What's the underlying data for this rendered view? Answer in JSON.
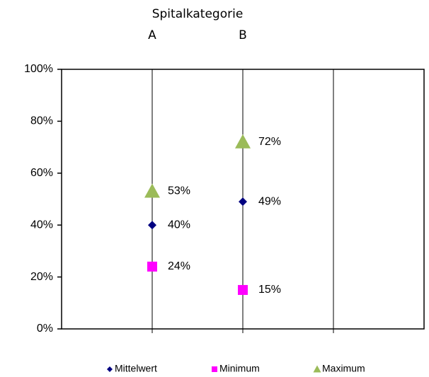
{
  "chart_data": {
    "type": "scatter",
    "title": "Spitalkategorie",
    "categories": [
      "A",
      "B",
      null
    ],
    "series": [
      {
        "name": "Mittelwert",
        "color": "#000080",
        "marker": "diamond",
        "values": [
          40,
          49,
          null
        ],
        "value_labels": [
          "40%",
          "49%",
          null
        ]
      },
      {
        "name": "Minimum",
        "color": "#ff00ff",
        "marker": "square",
        "values": [
          24,
          15,
          null
        ],
        "value_labels": [
          "24%",
          "15%",
          null
        ]
      },
      {
        "name": "Maximum",
        "color": "#9bbb59",
        "marker": "triangle",
        "values": [
          53,
          72,
          null
        ],
        "value_labels": [
          "53%",
          "72%",
          null
        ]
      }
    ],
    "ylim": [
      0,
      100
    ],
    "yticks": [
      {
        "value": 0,
        "label": "0%"
      },
      {
        "value": 20,
        "label": "20%"
      },
      {
        "value": 40,
        "label": "40%"
      },
      {
        "value": 60,
        "label": "60%"
      },
      {
        "value": 80,
        "label": "80%"
      },
      {
        "value": 100,
        "label": "100%"
      }
    ],
    "legend": "bottom"
  }
}
